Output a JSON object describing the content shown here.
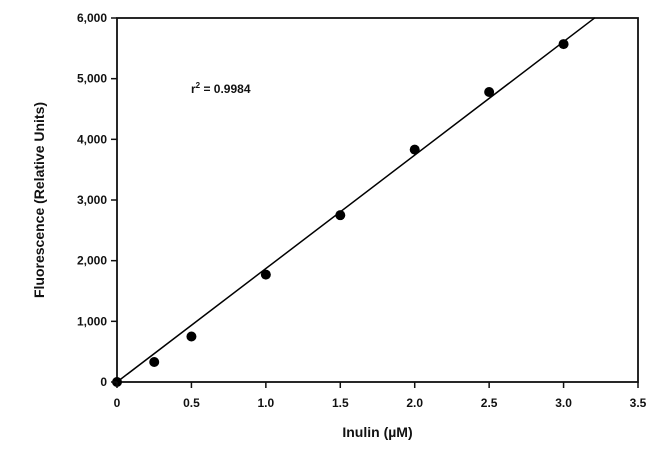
{
  "chart_data": {
    "type": "scatter",
    "xlabel": "Inulin (µM)",
    "ylabel": "Fluorescence (Relative Units)",
    "xlim": [
      0,
      3.5
    ],
    "ylim": [
      0,
      6000
    ],
    "x_ticks": [
      {
        "value": 0,
        "label": "0"
      },
      {
        "value": 0.5,
        "label": "0.5"
      },
      {
        "value": 1.0,
        "label": "1.0"
      },
      {
        "value": 1.5,
        "label": "1.5"
      },
      {
        "value": 2.0,
        "label": "2.0"
      },
      {
        "value": 2.5,
        "label": "2.5"
      },
      {
        "value": 3.0,
        "label": "3.0"
      },
      {
        "value": 3.5,
        "label": "3.5"
      }
    ],
    "y_ticks": [
      {
        "value": 0,
        "label": "0"
      },
      {
        "value": 1000,
        "label": "1,000"
      },
      {
        "value": 2000,
        "label": "2,000"
      },
      {
        "value": 3000,
        "label": "3,000"
      },
      {
        "value": 4000,
        "label": "4,000"
      },
      {
        "value": 5000,
        "label": "5,000"
      },
      {
        "value": 6000,
        "label": "6,000"
      }
    ],
    "grid": false,
    "legend": "none",
    "series": [
      {
        "points": [
          {
            "x": 0,
            "y": 0
          },
          {
            "x": 0.25,
            "y": 330
          },
          {
            "x": 0.5,
            "y": 750
          },
          {
            "x": 1.0,
            "y": 1770
          },
          {
            "x": 1.5,
            "y": 2750
          },
          {
            "x": 2.0,
            "y": 3830
          },
          {
            "x": 2.5,
            "y": 4780
          },
          {
            "x": 3.0,
            "y": 5570
          }
        ],
        "color": "#000000"
      }
    ],
    "fit_line": {
      "type": "linear",
      "slope": 1870,
      "intercept": 0,
      "x_range": [
        0,
        3.21
      ],
      "color": "#000000"
    },
    "annotation": {
      "r_label": "r",
      "r_superscript": "2",
      "r_value": " = 0.9984"
    }
  }
}
